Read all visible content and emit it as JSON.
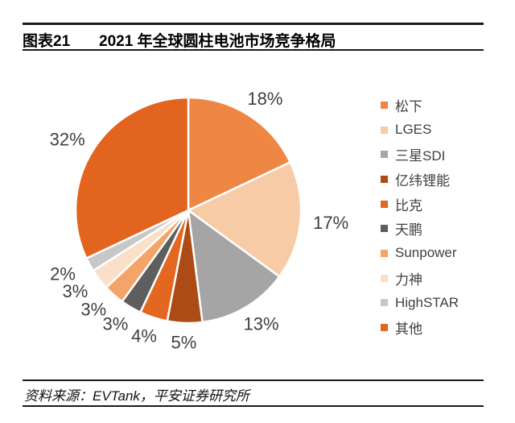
{
  "header": {
    "tag_label": "图表21",
    "title": "2021 年全球圆柱电池市场竞争格局"
  },
  "footer": {
    "source": "资料来源：EVTank，平安证券研究所"
  },
  "colors": {
    "rule": "#1a1a1a",
    "percent_label_text": "#3f3f3f",
    "legend_text": "#404040",
    "slice_border": "#ffffff"
  },
  "chart_data": {
    "type": "pie",
    "title": "2021 年全球圆柱电池市场竞争格局",
    "unit": "percent",
    "direction": "clockwise",
    "start_angle_deg": 0,
    "legend_position": "right",
    "grid": false,
    "series": [
      {
        "name": "松下",
        "value": 18,
        "label": "18%",
        "color": "#EE8744"
      },
      {
        "name": "LGES",
        "value": 17,
        "label": "17%",
        "color": "#F7CBA6"
      },
      {
        "name": "三星SDI",
        "value": 13,
        "label": "13%",
        "color": "#A5A5A5"
      },
      {
        "name": "亿纬锂能",
        "value": 5,
        "label": "5%",
        "color": "#AC4B15"
      },
      {
        "name": "比克",
        "value": 4,
        "label": "4%",
        "color": "#E4671F"
      },
      {
        "name": "天鹏",
        "value": 3,
        "label": "3%",
        "color": "#5E5E5E"
      },
      {
        "name": "Sunpower",
        "value": 3,
        "label": "3%",
        "color": "#F3A469"
      },
      {
        "name": "力神",
        "value": 3,
        "label": "3%",
        "color": "#FAE0C8"
      },
      {
        "name": "HighSTAR",
        "value": 2,
        "label": "2%",
        "color": "#C7C7C7"
      },
      {
        "name": "其他",
        "value": 32,
        "label": "32%",
        "color": "#E3641E"
      }
    ]
  }
}
